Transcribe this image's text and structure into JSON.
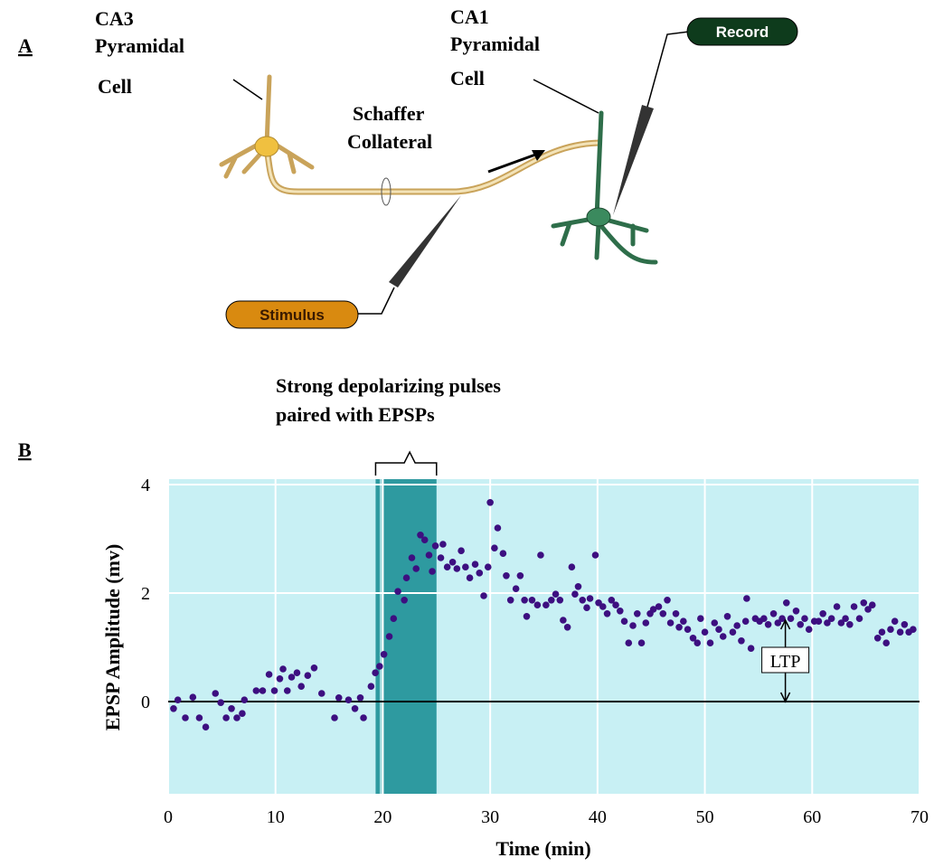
{
  "diagram": {
    "panel_label": "A",
    "ca3": {
      "line1": "CA3",
      "line2": "Pyramidal",
      "line3": "Cell"
    },
    "ca1": {
      "line1": "CA1",
      "line2": "Pyramidal",
      "line3": "Cell"
    },
    "pathway": {
      "line1": "Schaffer",
      "line2": "Collateral"
    },
    "record": "Record",
    "stimulus": "Stimulus"
  },
  "chart_data": {
    "type": "scatter",
    "panel_label": "B",
    "annotation": {
      "line1": "Strong depolarizing pulses",
      "line2": "paired with EPSPs"
    },
    "x_label": "Time (min)",
    "y_label": "EPSP Amplitude (mv)",
    "x": [
      0.5,
      0.9,
      1.6,
      2.3,
      2.9,
      3.5,
      4.4,
      4.9,
      5.4,
      5.9,
      6.4,
      6.9,
      7.1,
      8.2,
      8.8,
      9.4,
      9.9,
      10.4,
      10.7,
      11.1,
      11.5,
      12,
      12.4,
      13,
      13.6,
      14.3,
      15.5,
      15.9,
      16.8,
      17.4,
      17.9,
      18.2,
      18.9,
      19.3,
      19.7,
      20.1,
      20.6,
      21,
      21.4,
      22,
      22.2,
      22.7,
      23.1,
      23.5,
      23.9,
      24.3,
      24.6,
      24.9,
      25.4,
      25.6,
      26,
      26.5,
      26.9,
      27.3,
      27.7,
      28.1,
      28.6,
      29,
      29.4,
      29.8,
      30,
      30.4,
      30.7,
      31.2,
      31.5,
      31.9,
      32.4,
      32.8,
      33.2,
      33.4,
      33.9,
      34.4,
      34.7,
      35.2,
      35.7,
      36.1,
      36.5,
      36.8,
      37.2,
      37.6,
      37.9,
      38.2,
      38.6,
      39,
      39.3,
      39.8,
      40.1,
      40.5,
      40.9,
      41.3,
      41.7,
      42.1,
      42.5,
      42.9,
      43.3,
      43.7,
      44.1,
      44.5,
      44.9,
      45.2,
      45.7,
      46.1,
      46.5,
      46.8,
      47.3,
      47.6,
      48,
      48.4,
      48.9,
      49.3,
      49.6,
      50,
      50.5,
      50.9,
      51.3,
      51.7,
      52.1,
      52.6,
      53,
      53.4,
      53.8,
      53.9,
      54.3,
      54.7,
      55.1,
      55.5,
      55.9,
      56.4,
      56.8,
      57.2,
      57.6,
      58,
      58.5,
      58.9,
      59.3,
      59.7,
      60.2,
      60.6,
      61,
      61.4,
      61.8,
      62.3,
      62.7,
      63.1,
      63.5,
      63.9,
      64.4,
      64.8,
      65.2,
      65.6,
      66.1,
      66.5,
      66.9,
      67.3,
      67.7,
      68.2,
      68.6,
      69,
      69.4
    ],
    "values": [
      -0.13,
      0.03,
      -0.3,
      0.08,
      -0.3,
      -0.47,
      0.15,
      -0.02,
      -0.3,
      -0.13,
      -0.3,
      -0.22,
      0.03,
      0.2,
      0.2,
      0.5,
      0.2,
      0.42,
      0.6,
      0.2,
      0.45,
      0.53,
      0.28,
      0.48,
      0.62,
      0.15,
      -0.3,
      0.07,
      0.03,
      -0.13,
      0.07,
      -0.3,
      0.28,
      0.53,
      0.65,
      0.87,
      1.2,
      1.53,
      2.03,
      1.87,
      2.28,
      2.65,
      2.45,
      3.07,
      2.98,
      2.7,
      2.4,
      2.87,
      2.65,
      2.9,
      2.48,
      2.57,
      2.45,
      2.78,
      2.48,
      2.28,
      2.53,
      2.37,
      1.95,
      2.48,
      3.67,
      2.83,
      3.2,
      2.73,
      2.32,
      1.87,
      2.08,
      2.32,
      1.87,
      1.57,
      1.87,
      1.78,
      2.7,
      1.78,
      1.87,
      1.98,
      1.87,
      1.5,
      1.37,
      2.48,
      1.98,
      2.12,
      1.87,
      1.73,
      1.9,
      2.7,
      1.82,
      1.75,
      1.62,
      1.87,
      1.78,
      1.67,
      1.48,
      1.08,
      1.4,
      1.62,
      1.08,
      1.45,
      1.62,
      1.7,
      1.75,
      1.62,
      1.87,
      1.45,
      1.62,
      1.37,
      1.48,
      1.33,
      1.17,
      1.08,
      1.53,
      1.28,
      1.08,
      1.45,
      1.33,
      1.2,
      1.57,
      1.28,
      1.4,
      1.12,
      1.48,
      1.9,
      0.98,
      1.53,
      1.48,
      1.53,
      1.42,
      1.62,
      1.45,
      1.53,
      1.82,
      1.53,
      1.67,
      1.42,
      1.53,
      1.33,
      1.48,
      1.48,
      1.62,
      1.45,
      1.53,
      1.75,
      1.45,
      1.53,
      1.42,
      1.75,
      1.53,
      1.82,
      1.7,
      1.78,
      1.17,
      1.28,
      1.08,
      1.33,
      1.48,
      1.28,
      1.42,
      1.28,
      1.33
    ],
    "color": "#3d0f80",
    "xlim": [
      0,
      70
    ],
    "ylim": [
      -1.7,
      4.1
    ],
    "xticks": [
      0,
      10,
      20,
      30,
      40,
      50,
      60,
      70
    ],
    "yticks": [
      0,
      2,
      4
    ],
    "grid": true,
    "stimulus_window": [
      20,
      25
    ],
    "reference_line": 0,
    "ltp_marker": {
      "label": "LTP",
      "x": 57.5,
      "from": 0,
      "to": 1.5
    }
  }
}
